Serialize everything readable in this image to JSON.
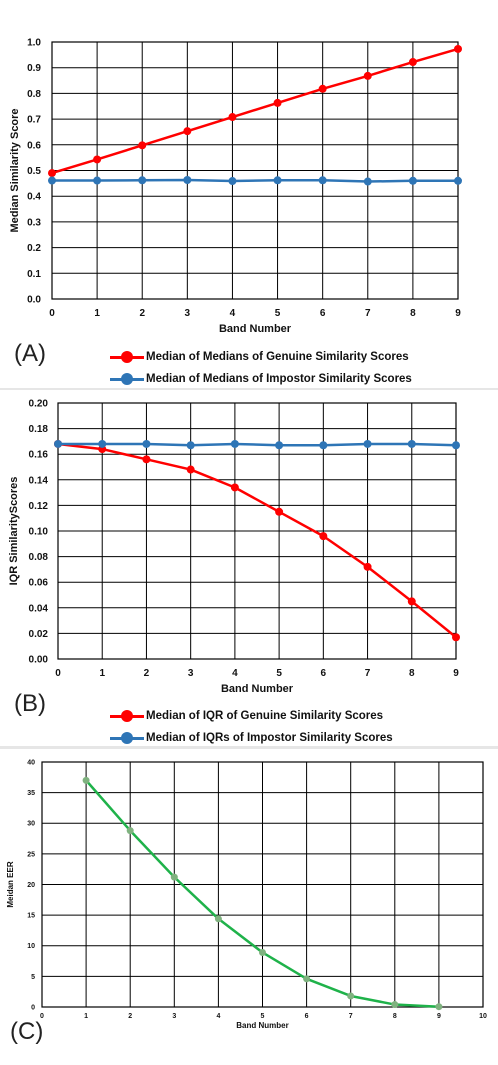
{
  "chart_data": [
    {
      "type": "line",
      "panel_label": "(A)",
      "xlabel": "Band Number",
      "ylabel": "Median Similarity Score",
      "xlim": [
        0,
        9
      ],
      "ylim": [
        0,
        1.0
      ],
      "x_ticks": [
        "0",
        "1",
        "2",
        "3",
        "4",
        "5",
        "6",
        "7",
        "8",
        "9"
      ],
      "y_ticks": [
        "0.0",
        "0.1",
        "0.2",
        "0.3",
        "0.4",
        "0.5",
        "0.6",
        "0.7",
        "0.8",
        "0.9",
        "1.0"
      ],
      "grid": true,
      "legend_position": "bottom",
      "x": [
        0,
        1,
        2,
        3,
        4,
        5,
        6,
        7,
        8,
        9
      ],
      "series": [
        {
          "name": "Median of Medians of Genuine Similarity Scores",
          "color": "#ff0000",
          "values": [
            0.49,
            0.543,
            0.598,
            0.653,
            0.708,
            0.763,
            0.818,
            0.868,
            0.922,
            0.973
          ]
        },
        {
          "name": "Median of Medians of Impostor Similarity Scores",
          "color": "#2e75b6",
          "values": [
            0.461,
            0.461,
            0.462,
            0.463,
            0.459,
            0.462,
            0.462,
            0.457,
            0.46,
            0.46
          ]
        }
      ]
    },
    {
      "type": "line",
      "panel_label": "(B)",
      "xlabel": "Band Number",
      "ylabel": "IQR SimilarityScores",
      "xlim": [
        0,
        9
      ],
      "ylim": [
        0,
        0.2
      ],
      "x_ticks": [
        "0",
        "1",
        "2",
        "3",
        "4",
        "5",
        "6",
        "7",
        "8",
        "9"
      ],
      "y_ticks": [
        "0.00",
        "0.02",
        "0.04",
        "0.06",
        "0.08",
        "0.10",
        "0.12",
        "0.14",
        "0.16",
        "0.18",
        "0.20"
      ],
      "grid": true,
      "legend_position": "bottom",
      "x": [
        0,
        1,
        2,
        3,
        4,
        5,
        6,
        7,
        8,
        9
      ],
      "series": [
        {
          "name": "Median of IQR of Genuine Similarity Scores",
          "color": "#ff0000",
          "values": [
            0.168,
            0.164,
            0.156,
            0.148,
            0.134,
            0.115,
            0.096,
            0.072,
            0.045,
            0.017
          ]
        },
        {
          "name": "Median of IQRs of Impostor Similarity Scores",
          "color": "#2e75b6",
          "values": [
            0.168,
            0.168,
            0.168,
            0.167,
            0.168,
            0.167,
            0.167,
            0.168,
            0.168,
            0.167
          ]
        }
      ]
    },
    {
      "type": "line",
      "panel_label": "(C)",
      "xlabel": "Band Number",
      "ylabel": "Meidan EER",
      "xlim": [
        0,
        10
      ],
      "ylim": [
        0,
        40
      ],
      "x_ticks": [
        "0",
        "1",
        "2",
        "3",
        "4",
        "5",
        "6",
        "7",
        "8",
        "9",
        "10"
      ],
      "y_ticks": [
        "0",
        "5",
        "10",
        "15",
        "20",
        "25",
        "30",
        "35",
        "40"
      ],
      "grid": true,
      "x": [
        1,
        2,
        3,
        4,
        5,
        6,
        7,
        8,
        9
      ],
      "series": [
        {
          "name": "",
          "color": "#1fb24a",
          "marker_color": "#7fb27f",
          "values": [
            37.0,
            28.8,
            21.2,
            14.4,
            8.9,
            4.6,
            1.8,
            0.4,
            0.05
          ]
        }
      ]
    }
  ]
}
